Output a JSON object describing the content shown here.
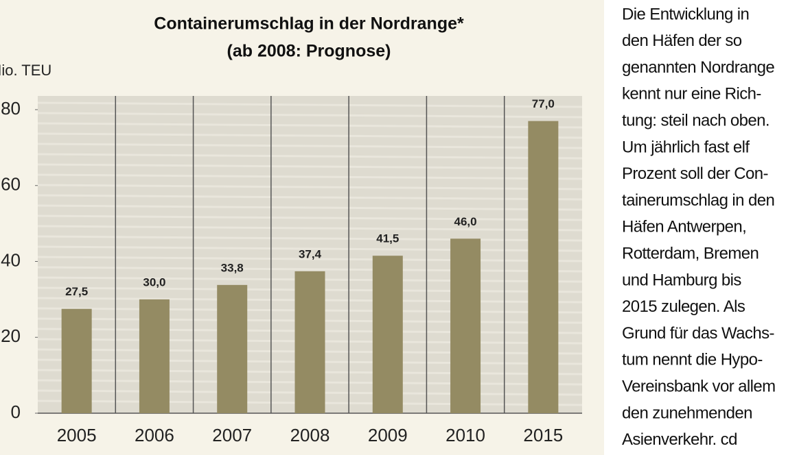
{
  "chart_data": {
    "type": "bar",
    "title": "Containerumschlag in der Nordrange*",
    "subtitle": "(ab 2008: Prognose)",
    "y_label": "Mio. TEU",
    "categories": [
      "2005",
      "2006",
      "2007",
      "2008",
      "2009",
      "2010",
      "2015"
    ],
    "values": [
      27.5,
      30.0,
      33.8,
      37.4,
      41.5,
      46.0,
      77.0
    ],
    "value_labels": [
      "27,5",
      "30,0",
      "33,8",
      "37,4",
      "41,5",
      "46,0",
      "77,0"
    ],
    "color": "#948b63",
    "ylim": [
      0,
      80
    ],
    "yticks": [
      0,
      20,
      40,
      60,
      80
    ]
  },
  "sidebar": {
    "lines": [
      "Die Entwicklung in",
      "den Häfen der so",
      "genannten Nordrange",
      "kennt nur eine Rich-",
      "tung: steil nach oben.",
      "Um jährlich fast elf",
      "Prozent soll der Con-",
      "tainerumschlag in den",
      "Häfen Antwerpen,",
      "Rotterdam, Bremen",
      "und Hamburg bis",
      "2015 zulegen. Als",
      "Grund für das Wachs-",
      "tum nennt die Hypo-",
      "Vereinsbank vor allem",
      "den zunehmenden",
      "Asienverkehr. cd"
    ]
  }
}
